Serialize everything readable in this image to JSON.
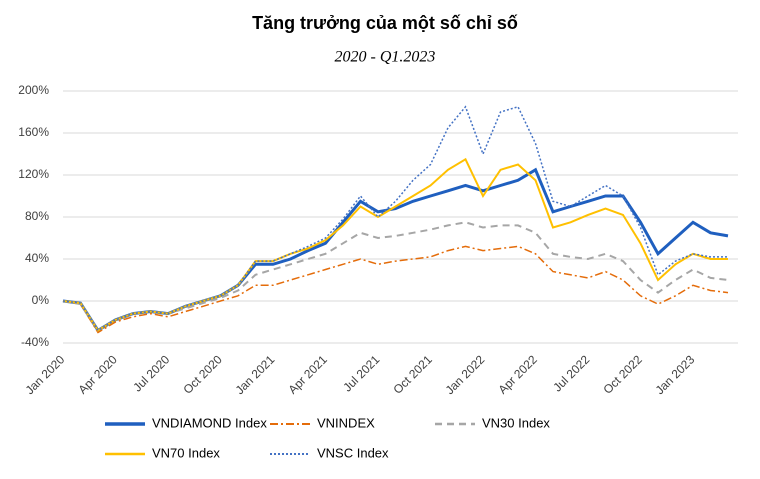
{
  "chart_data": {
    "type": "line",
    "title": "Tăng trưởng của một số chỉ số",
    "subtitle": "2020 - Q1.2023",
    "categories": [
      "Jan 2020",
      null,
      null,
      "Apr 2020",
      null,
      null,
      "Jul 2020",
      null,
      null,
      "Oct 2020",
      null,
      null,
      "Jan 2021",
      null,
      null,
      "Apr 2021",
      null,
      null,
      "Jul 2021",
      null,
      null,
      "Oct 2021",
      null,
      null,
      "Jan 2022",
      null,
      null,
      "Apr 2022",
      null,
      null,
      "Jul 2022",
      null,
      null,
      "Oct 2022",
      null,
      null,
      "Jan 2023",
      null,
      null
    ],
    "ylim": [
      -40,
      200
    ],
    "yticks": [
      {
        "value": -40,
        "label": "-40%"
      },
      {
        "value": 0,
        "label": "0%"
      },
      {
        "value": 40,
        "label": "40%"
      },
      {
        "value": 80,
        "label": "80%"
      },
      {
        "value": 120,
        "label": "120%"
      },
      {
        "value": 160,
        "label": "160%"
      },
      {
        "value": 200,
        "label": "200%"
      }
    ],
    "grid": true,
    "series": [
      {
        "name": "VNDIAMOND Index",
        "color": "#1f5fbf",
        "dash": "solid",
        "width": 3,
        "values": [
          0,
          -2,
          -28,
          -18,
          -12,
          -10,
          -12,
          -5,
          0,
          5,
          15,
          35,
          35,
          40,
          48,
          55,
          75,
          95,
          85,
          88,
          95,
          100,
          105,
          110,
          105,
          110,
          115,
          125,
          85,
          90,
          95,
          100,
          100,
          75,
          45,
          60,
          75,
          65,
          62
        ]
      },
      {
        "name": "VNINDEX",
        "color": "#e46c0a",
        "dash": "dashdot",
        "width": 1.5,
        "values": [
          0,
          -3,
          -30,
          -20,
          -15,
          -12,
          -15,
          -10,
          -5,
          0,
          5,
          15,
          15,
          20,
          25,
          30,
          35,
          40,
          35,
          38,
          40,
          42,
          48,
          52,
          48,
          50,
          52,
          45,
          28,
          25,
          22,
          28,
          20,
          5,
          -3,
          5,
          15,
          10,
          8
        ]
      },
      {
        "name": "VN30 Index",
        "color": "#a6a6a6",
        "dash": "dash",
        "width": 2,
        "values": [
          0,
          -3,
          -28,
          -18,
          -12,
          -10,
          -12,
          -7,
          -2,
          3,
          10,
          25,
          30,
          35,
          40,
          45,
          55,
          65,
          60,
          62,
          65,
          68,
          72,
          75,
          70,
          72,
          72,
          65,
          45,
          42,
          40,
          45,
          38,
          20,
          8,
          20,
          30,
          22,
          20
        ]
      },
      {
        "name": "VN70 Index",
        "color": "#ffc000",
        "dash": "solid",
        "width": 2,
        "values": [
          0,
          -2,
          -28,
          -18,
          -12,
          -10,
          -12,
          -5,
          0,
          5,
          15,
          38,
          38,
          45,
          50,
          58,
          72,
          90,
          80,
          90,
          100,
          110,
          125,
          135,
          100,
          125,
          130,
          115,
          70,
          75,
          82,
          88,
          82,
          55,
          20,
          35,
          45,
          40,
          40
        ]
      },
      {
        "name": "VNSC Index",
        "color": "#4472c4",
        "dash": "dot",
        "width": 1.5,
        "values": [
          0,
          -2,
          -28,
          -18,
          -12,
          -10,
          -12,
          -5,
          0,
          5,
          15,
          38,
          38,
          45,
          52,
          60,
          78,
          100,
          80,
          95,
          115,
          130,
          165,
          185,
          140,
          180,
          185,
          150,
          95,
          90,
          100,
          110,
          100,
          70,
          25,
          38,
          45,
          42,
          42
        ]
      }
    ]
  }
}
